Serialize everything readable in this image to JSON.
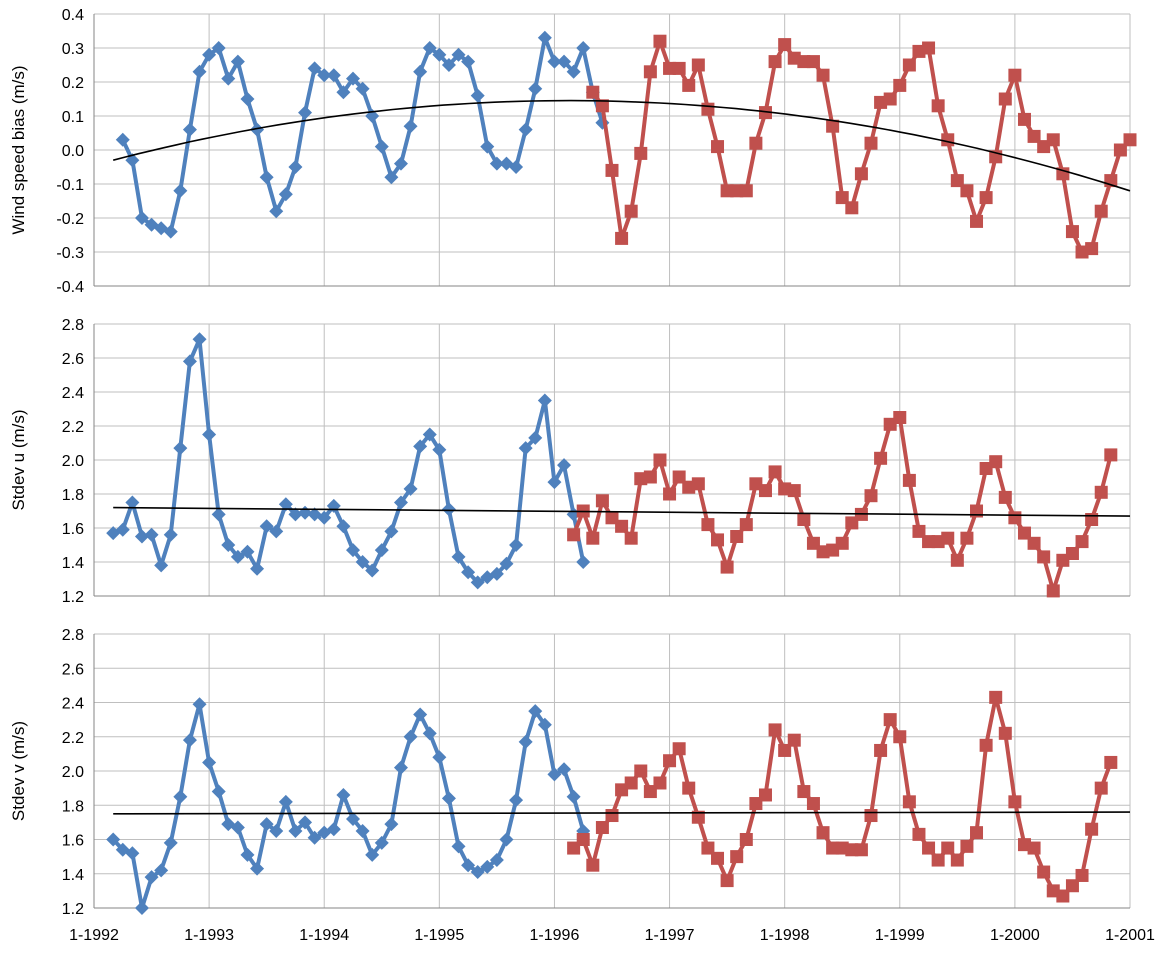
{
  "colors": {
    "blue": "#4F81BD",
    "red": "#C0504D",
    "trend": "#000000",
    "grid": "#BFBFBF"
  },
  "chart_data": [
    {
      "type": "line",
      "ylabel": "Wind speed bias (m/s)",
      "ylim": [
        -0.4,
        0.4
      ],
      "yticks": [
        -0.4,
        -0.3,
        -0.2,
        -0.1,
        0.0,
        0.1,
        0.2,
        0.3,
        0.4
      ],
      "ytick_labels": [
        "-0.4",
        "-0.3",
        "-0.2",
        "-0.1",
        "0.0",
        "0.1",
        "0.2",
        "0.3",
        "0.4"
      ],
      "xlim": [
        "1992-01-01",
        "2001-01-01"
      ],
      "xtick_labels": [],
      "grid": true,
      "series": [
        {
          "marker": "diamond",
          "color": "blue",
          "x_start": "1992-04",
          "values": [
            0.03,
            -0.03,
            -0.2,
            -0.22,
            -0.23,
            -0.24,
            -0.12,
            0.06,
            0.23,
            0.28,
            0.3,
            0.21,
            0.26,
            0.15,
            0.06,
            -0.08,
            -0.18,
            -0.13,
            -0.05,
            0.11,
            0.24,
            0.22,
            0.22,
            0.17,
            0.21,
            0.18,
            0.1,
            0.01,
            -0.08,
            -0.04,
            0.07,
            0.23,
            0.3,
            0.28,
            0.25,
            0.28,
            0.26,
            0.16,
            0.01,
            -0.04,
            -0.04,
            -0.05,
            0.06,
            0.18,
            0.33,
            0.26,
            0.26,
            0.23,
            0.3,
            0.17,
            0.08
          ]
        },
        {
          "marker": "square",
          "color": "red",
          "x_start": "1996-05",
          "values": [
            0.17,
            0.13,
            -0.06,
            -0.26,
            -0.18,
            -0.01,
            0.23,
            0.32,
            0.24,
            0.24,
            0.19,
            0.25,
            0.12,
            0.01,
            -0.12,
            -0.12,
            -0.12,
            0.02,
            0.11,
            0.26,
            0.31,
            0.27,
            0.26,
            0.26,
            0.22,
            0.07,
            -0.14,
            -0.17,
            -0.07,
            0.02,
            0.14,
            0.15,
            0.19,
            0.25,
            0.29,
            0.3,
            0.13,
            0.03,
            -0.09,
            -0.12,
            -0.21,
            -0.14,
            -0.02,
            0.15,
            0.22,
            0.09,
            0.04,
            0.01,
            0.03,
            -0.07,
            -0.24,
            -0.3,
            -0.29,
            -0.18,
            -0.09,
            0.0,
            0.03
          ]
        }
      ],
      "trend": {
        "type": "poly2",
        "x": [
          "1992-03",
          "1996-01",
          "2001-01"
        ],
        "y": [
          -0.03,
          0.145,
          -0.12
        ]
      }
    },
    {
      "type": "line",
      "ylabel": "Stdev u (m/s)",
      "ylim": [
        1.2,
        2.8
      ],
      "yticks": [
        1.2,
        1.4,
        1.6,
        1.8,
        2.0,
        2.2,
        2.4,
        2.6,
        2.8
      ],
      "ytick_labels": [
        "1.2",
        "1.4",
        "1.6",
        "1.8",
        "2.0",
        "2.2",
        "2.4",
        "2.6",
        "2.8"
      ],
      "xlim": [
        "1992-01-01",
        "2001-01-01"
      ],
      "xtick_labels": [],
      "grid": true,
      "series": [
        {
          "marker": "diamond",
          "color": "blue",
          "x_start": "1992-03",
          "values": [
            1.57,
            1.59,
            1.75,
            1.55,
            1.56,
            1.38,
            1.56,
            2.07,
            2.58,
            2.71,
            2.15,
            1.68,
            1.5,
            1.43,
            1.46,
            1.36,
            1.61,
            1.58,
            1.74,
            1.68,
            1.69,
            1.68,
            1.66,
            1.73,
            1.61,
            1.47,
            1.4,
            1.35,
            1.47,
            1.58,
            1.75,
            1.83,
            2.08,
            2.15,
            2.06,
            1.71,
            1.43,
            1.34,
            1.28,
            1.31,
            1.33,
            1.39,
            1.5,
            2.07,
            2.13,
            2.35,
            1.87,
            1.97,
            1.68,
            1.4
          ]
        },
        {
          "marker": "square",
          "color": "red",
          "x_start": "1996-03",
          "values": [
            1.56,
            1.7,
            1.54,
            1.76,
            1.66,
            1.61,
            1.54,
            1.89,
            1.9,
            2.0,
            1.8,
            1.9,
            1.84,
            1.86,
            1.62,
            1.53,
            1.37,
            1.55,
            1.62,
            1.86,
            1.82,
            1.93,
            1.83,
            1.82,
            1.65,
            1.51,
            1.46,
            1.47,
            1.51,
            1.63,
            1.68,
            1.79,
            2.01,
            2.21,
            2.25,
            1.88,
            1.58,
            1.52,
            1.52,
            1.54,
            1.41,
            1.54,
            1.7,
            1.95,
            1.99,
            1.78,
            1.66,
            1.57,
            1.51,
            1.43,
            1.23,
            1.41,
            1.45,
            1.52,
            1.65,
            1.81,
            2.03
          ]
        }
      ],
      "trend": {
        "type": "linear",
        "x": [
          "1992-03",
          "2001-01"
        ],
        "y": [
          1.72,
          1.67
        ]
      }
    },
    {
      "type": "line",
      "ylabel": "Stdev v (m/s)",
      "ylim": [
        1.2,
        2.8
      ],
      "yticks": [
        1.2,
        1.4,
        1.6,
        1.8,
        2.0,
        2.2,
        2.4,
        2.6,
        2.8
      ],
      "ytick_labels": [
        "1.2",
        "1.4",
        "1.6",
        "1.8",
        "2.0",
        "2.2",
        "2.4",
        "2.6",
        "2.8"
      ],
      "xlim": [
        "1992-01-01",
        "2001-01-01"
      ],
      "xtick_labels": [
        "1-1992",
        "1-1993",
        "1-1994",
        "1-1995",
        "1-1996",
        "1-1997",
        "1-1998",
        "1-1999",
        "1-2000",
        "1-2001"
      ],
      "grid": true,
      "series": [
        {
          "marker": "diamond",
          "color": "blue",
          "x_start": "1992-03",
          "values": [
            1.6,
            1.54,
            1.52,
            1.2,
            1.38,
            1.42,
            1.58,
            1.85,
            2.18,
            2.39,
            2.05,
            1.88,
            1.69,
            1.67,
            1.51,
            1.43,
            1.69,
            1.65,
            1.82,
            1.65,
            1.7,
            1.61,
            1.64,
            1.66,
            1.86,
            1.72,
            1.65,
            1.51,
            1.58,
            1.69,
            2.02,
            2.2,
            2.33,
            2.22,
            2.08,
            1.84,
            1.56,
            1.45,
            1.41,
            1.44,
            1.48,
            1.6,
            1.83,
            2.17,
            2.35,
            2.27,
            1.98,
            2.01,
            1.85,
            1.65
          ]
        },
        {
          "marker": "square",
          "color": "red",
          "x_start": "1996-03",
          "values": [
            1.55,
            1.6,
            1.45,
            1.67,
            1.74,
            1.89,
            1.93,
            2.0,
            1.88,
            1.93,
            2.06,
            2.13,
            1.9,
            1.73,
            1.55,
            1.49,
            1.36,
            1.5,
            1.6,
            1.81,
            1.86,
            2.24,
            2.12,
            2.18,
            1.88,
            1.81,
            1.64,
            1.55,
            1.55,
            1.54,
            1.54,
            1.74,
            2.12,
            2.3,
            2.2,
            1.82,
            1.63,
            1.55,
            1.48,
            1.55,
            1.48,
            1.56,
            1.64,
            2.15,
            2.43,
            2.22,
            1.82,
            1.57,
            1.55,
            1.41,
            1.3,
            1.27,
            1.33,
            1.39,
            1.66,
            1.9,
            2.05
          ]
        }
      ],
      "trend": {
        "type": "linear",
        "x": [
          "1992-03",
          "2001-01"
        ],
        "y": [
          1.75,
          1.76
        ]
      }
    }
  ]
}
